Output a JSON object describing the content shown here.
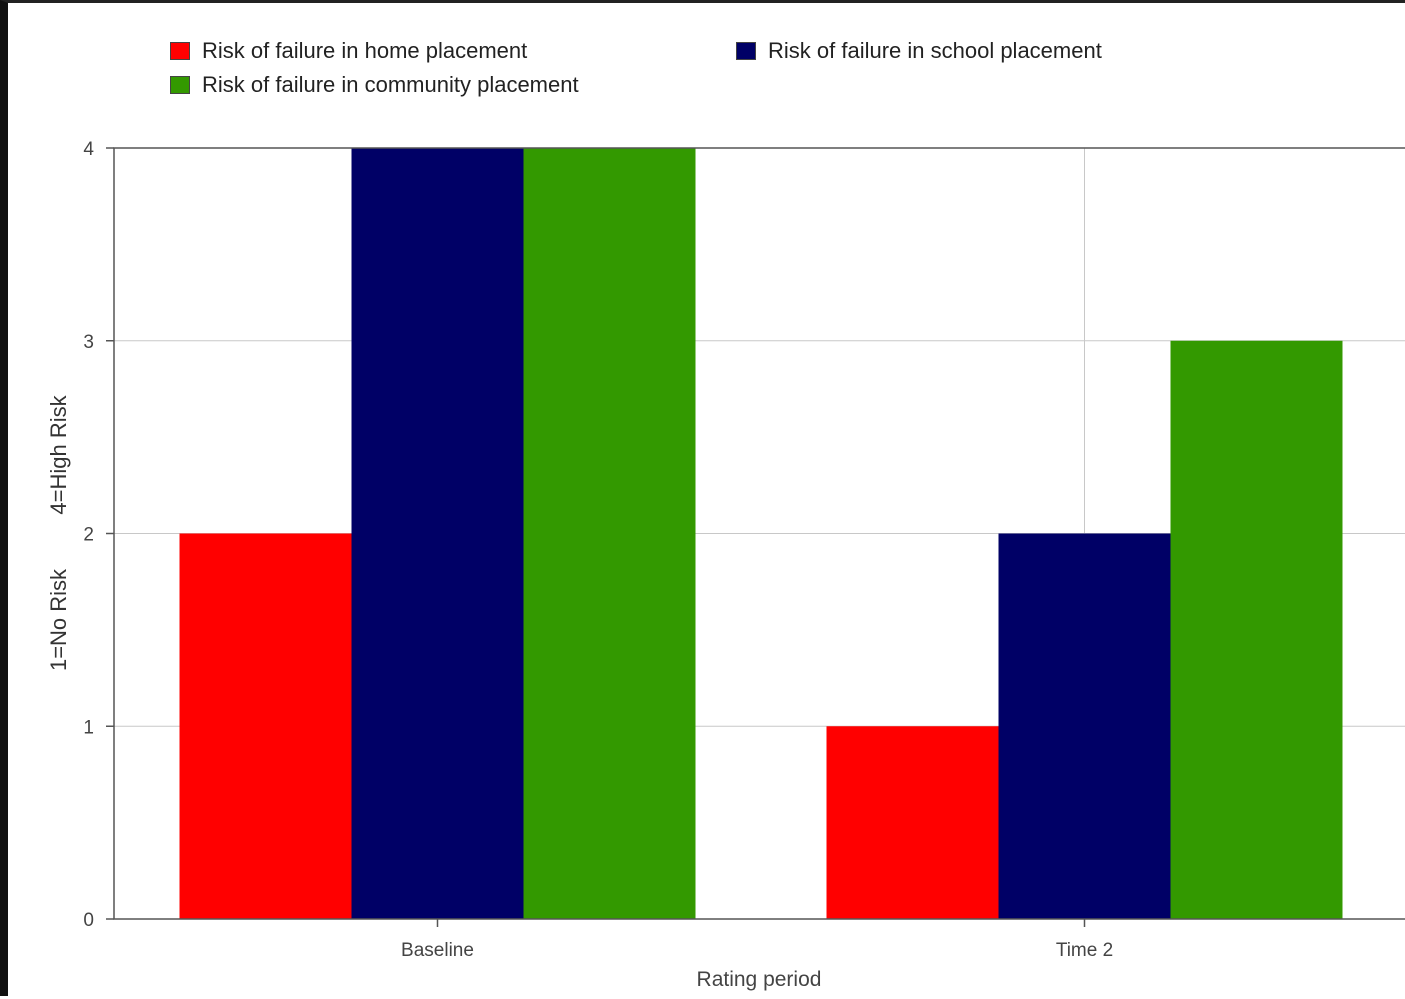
{
  "chart_data": {
    "type": "bar",
    "title": "",
    "categories": [
      "Baseline",
      "Time 2"
    ],
    "series": [
      {
        "name": "Risk of failure in home placement",
        "color": "#ff0000",
        "values": [
          2,
          1
        ]
      },
      {
        "name": "Risk of failure in school placement",
        "color": "#000066",
        "values": [
          4,
          2
        ]
      },
      {
        "name": "Risk of failure in community placement",
        "color": "#339900",
        "values": [
          4,
          3
        ]
      }
    ],
    "xlabel": "Rating period",
    "ylabel_parts": [
      "1=No Risk",
      "4=High Risk"
    ],
    "ylim": [
      0,
      4
    ],
    "yticks": [
      "0",
      "1",
      "2",
      "3",
      "4"
    ],
    "grid": true,
    "legend_position": "top"
  }
}
